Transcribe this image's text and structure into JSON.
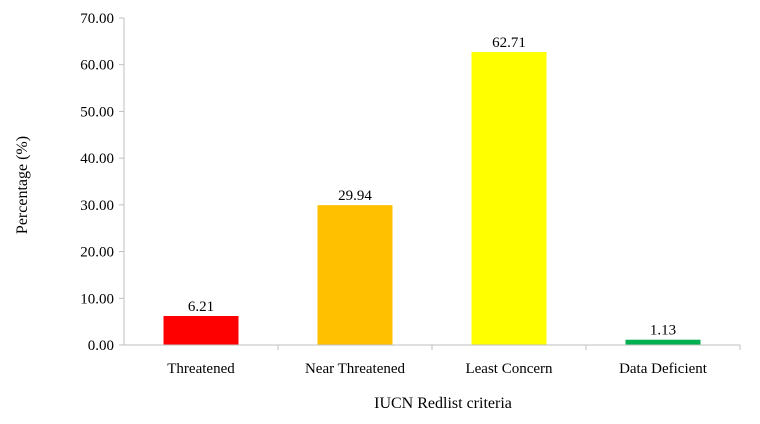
{
  "chart_data": {
    "type": "bar",
    "title": "",
    "xlabel": "IUCN Redlist criteria",
    "ylabel": "Percentage (%)",
    "ylim": [
      0,
      70
    ],
    "y_ticks": [
      "0.00",
      "10.00",
      "20.00",
      "30.00",
      "40.00",
      "50.00",
      "60.00",
      "70.00"
    ],
    "categories": [
      "Threatened",
      "Near Threatened",
      "Least Concern",
      "Data Deficient"
    ],
    "values": [
      6.21,
      29.94,
      62.71,
      1.13
    ],
    "value_labels": [
      "6.21",
      "29.94",
      "62.71",
      "1.13"
    ],
    "colors": [
      "#ff0000",
      "#ffc000",
      "#ffff00",
      "#00b050"
    ],
    "grid": false,
    "legend": "none"
  }
}
